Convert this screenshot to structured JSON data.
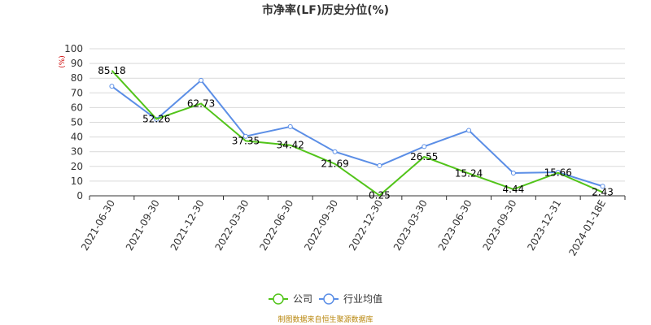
{
  "chart_data": {
    "type": "line",
    "title": "市净率(LF)历史分位(%)",
    "y_unit": "(%)",
    "ylim": [
      0,
      100
    ],
    "y_ticks": [
      0,
      10,
      20,
      30,
      40,
      50,
      60,
      70,
      80,
      90,
      100
    ],
    "grid": true,
    "legend_position": "bottom",
    "categories": [
      "2021-06-30",
      "2021-09-30",
      "2021-12-30",
      "2022-03-30",
      "2022-06-30",
      "2022-09-30",
      "2022-12-30",
      "2023-03-30",
      "2023-06-30",
      "2023-09-30",
      "2023-12-31",
      "2024-01-18E"
    ],
    "series": [
      {
        "name": "公司",
        "color": "#52c41a",
        "marker": "none",
        "values": [
          85.18,
          52.26,
          62.73,
          37.35,
          34.42,
          21.69,
          0.25,
          26.55,
          15.24,
          4.44,
          15.66,
          2.43
        ],
        "labels": [
          "85.18",
          "52.26",
          "62.73",
          "37.35",
          "34.42",
          "21.69",
          "0.25",
          "26.55",
          "15.24",
          "4.44",
          "15.66",
          "2.43"
        ]
      },
      {
        "name": "行业均值",
        "color": "#5b8ee6",
        "marker": "circle",
        "values": [
          74.5,
          52.0,
          78.5,
          40.5,
          47.0,
          30.0,
          20.5,
          33.5,
          44.5,
          15.5,
          16.0,
          6.5
        ]
      }
    ],
    "source": "制图数据来自恒生聚源数据库"
  }
}
